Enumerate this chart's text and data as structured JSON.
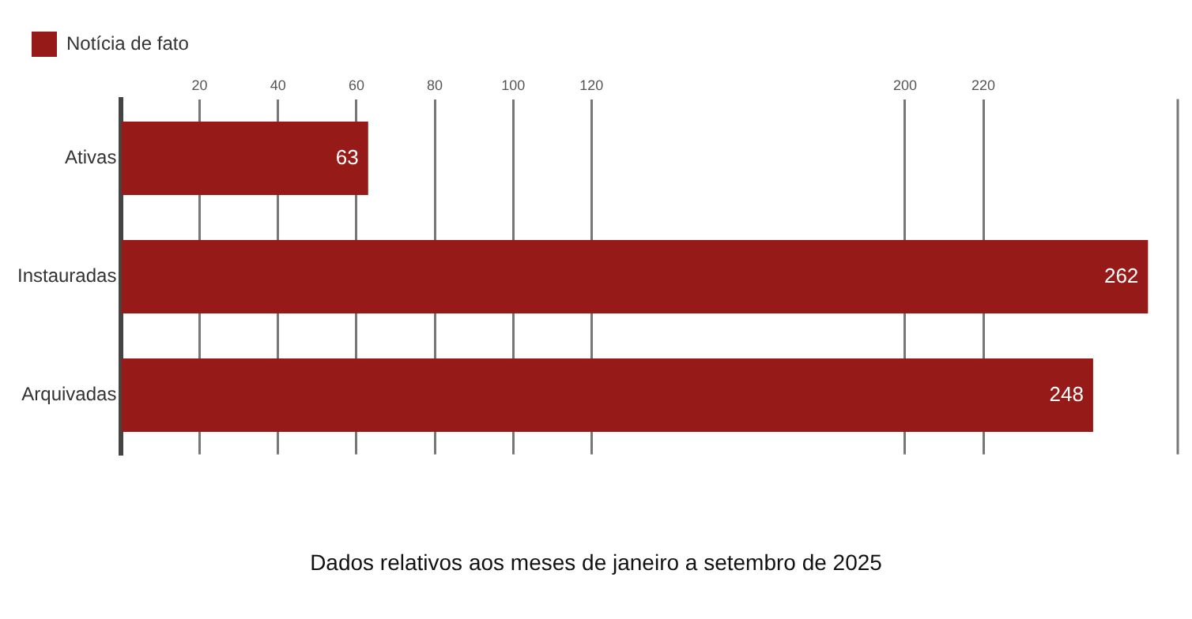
{
  "chart_data": {
    "type": "bar",
    "orientation": "horizontal",
    "categories": [
      "Ativas",
      "Instauradas",
      "Arquivadas"
    ],
    "series": [
      {
        "name": "Notícia de fato",
        "color": "#961a17",
        "values": [
          63,
          262,
          248
        ]
      }
    ],
    "xlim": [
      0,
      270
    ],
    "xticks": [
      20,
      40,
      60,
      80,
      100,
      120,
      200,
      220
    ],
    "grid": "x",
    "legend": "top left",
    "data_labels": true,
    "annotations": [
      "Dados relativos aos meses de janeiro a setembro de 2025"
    ]
  }
}
